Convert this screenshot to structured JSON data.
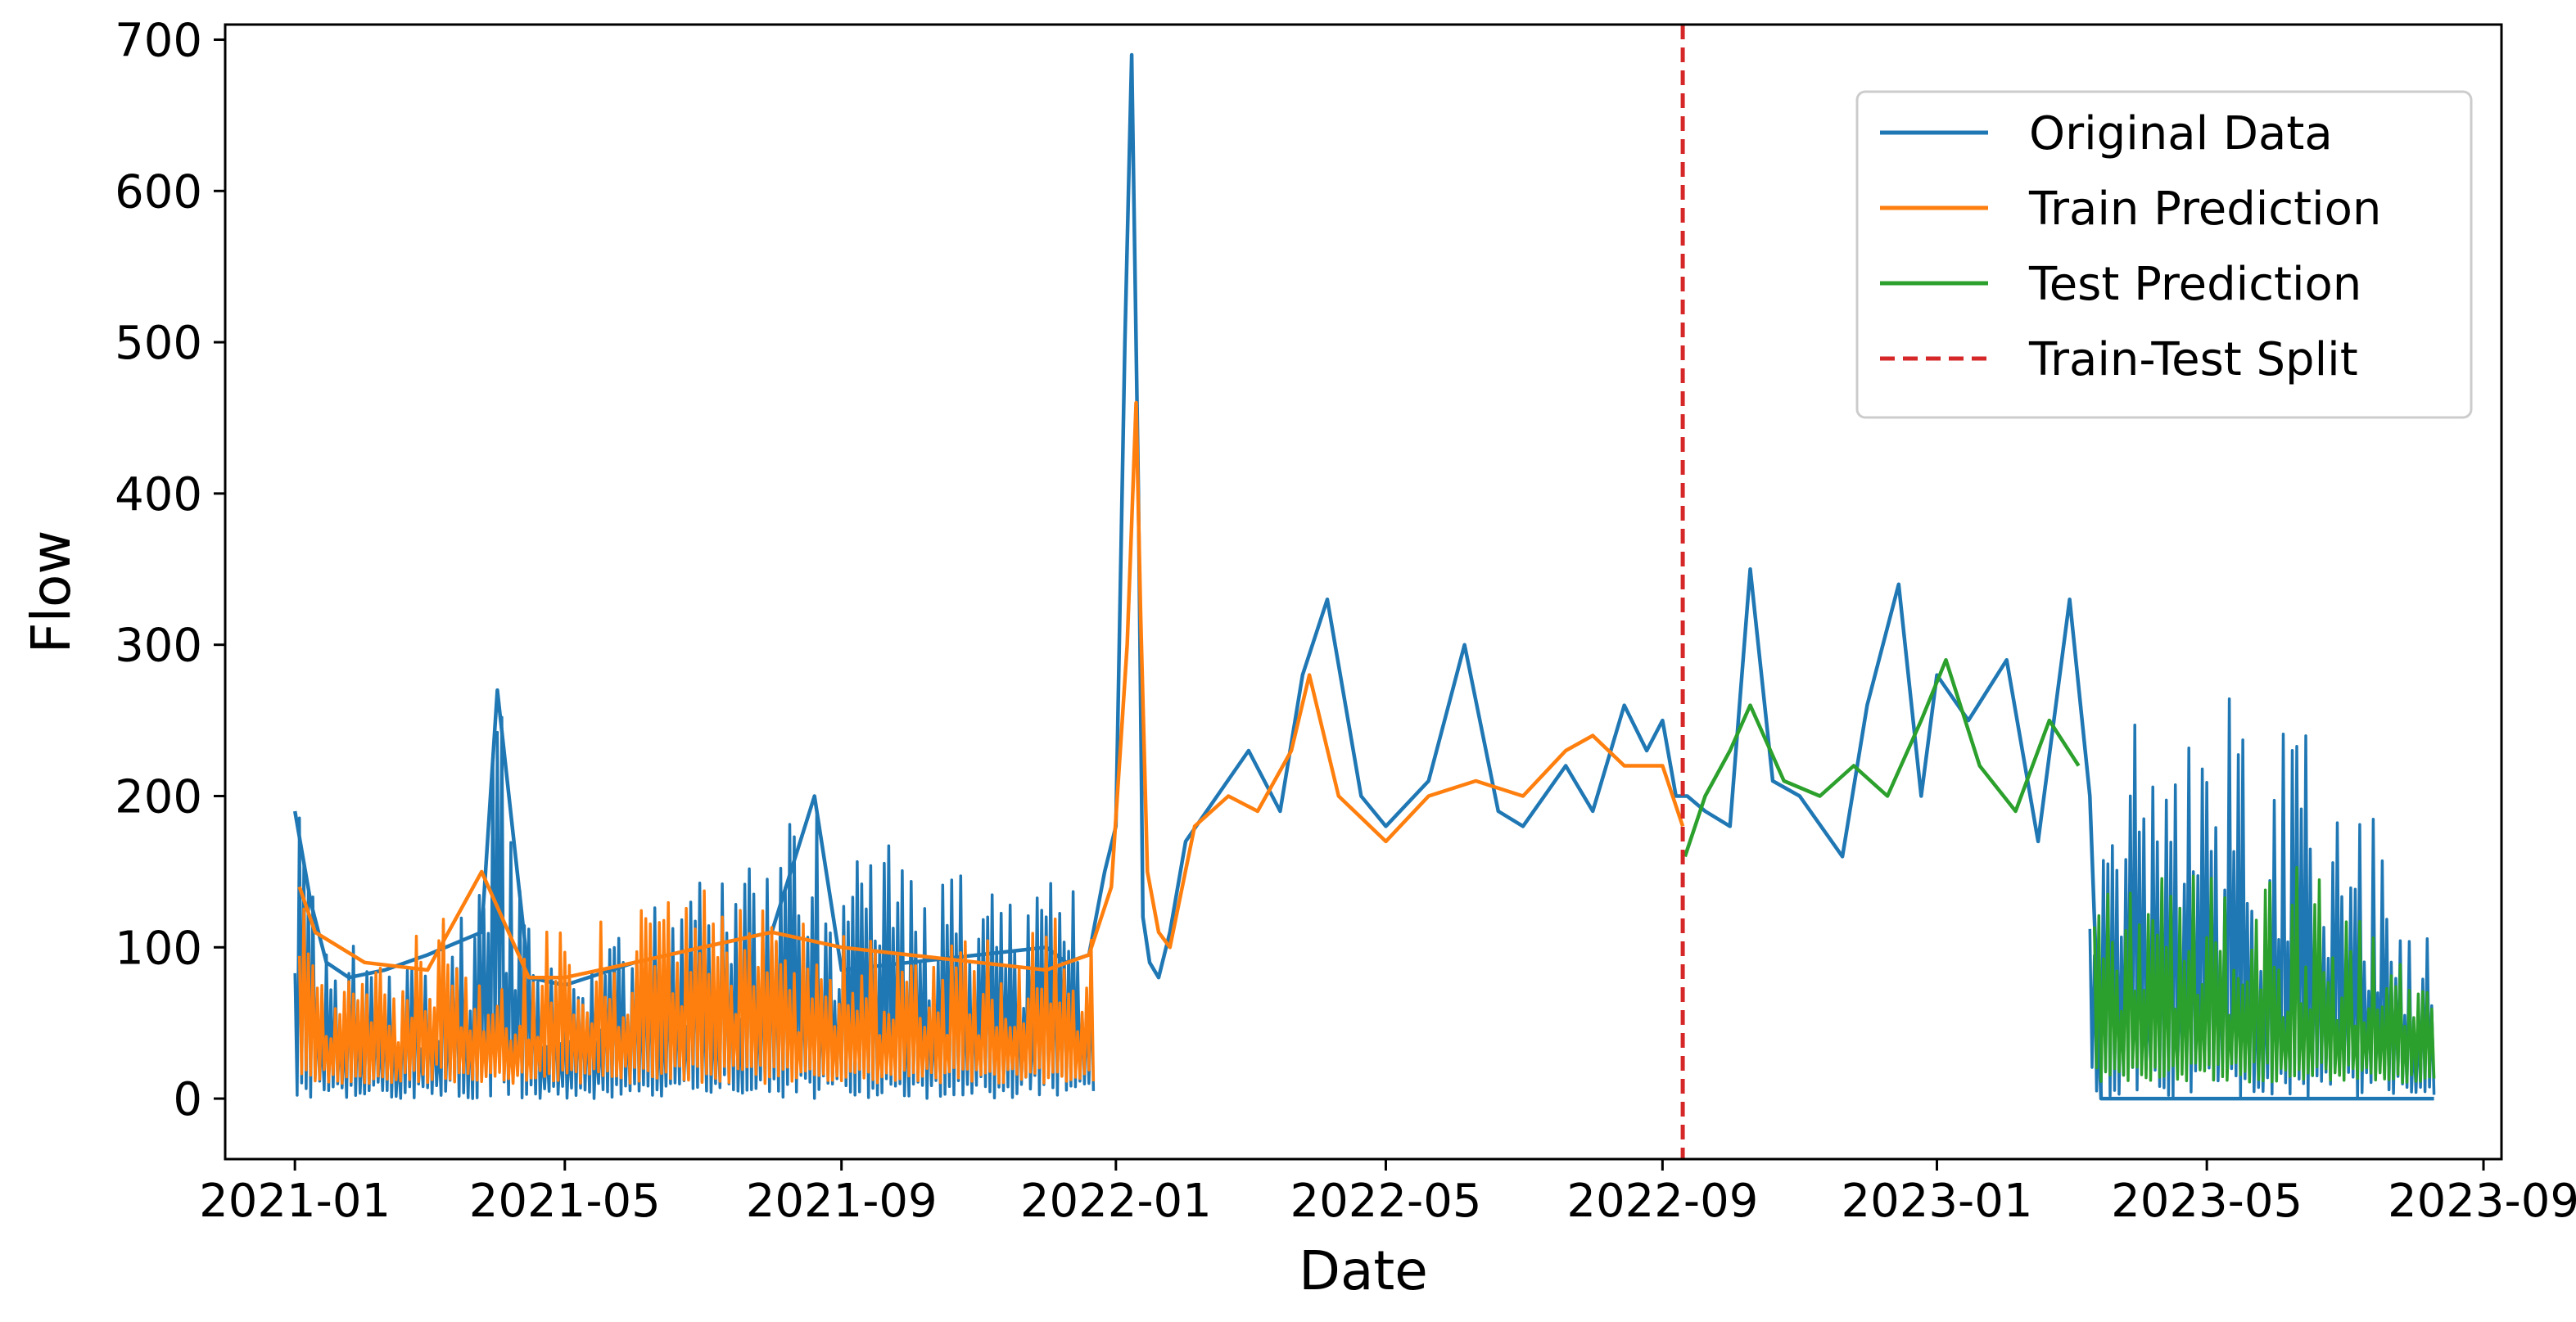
{
  "chart_data": {
    "type": "line",
    "title": "",
    "xlabel": "Date",
    "ylabel": "Flow",
    "xlim": [
      "2020-12-01",
      "2023-09-09"
    ],
    "ylim": [
      -40,
      710
    ],
    "x_ticks": [
      "2021-01",
      "2021-05",
      "2021-09",
      "2022-01",
      "2022-05",
      "2022-09",
      "2023-01",
      "2023-05",
      "2023-09"
    ],
    "y_ticks": [
      0,
      100,
      200,
      300,
      400,
      500,
      600,
      700
    ],
    "grid": false,
    "legend_position": "top-right",
    "series": [
      {
        "name": "Original Data",
        "color": "#1f77b4",
        "style": "solid",
        "x": [
          "2021-01-01",
          "2021-01-08",
          "2021-01-15",
          "2021-01-25",
          "2021-02-10",
          "2021-03-01",
          "2021-03-25",
          "2021-04-01",
          "2021-04-15",
          "2021-05-01",
          "2021-06-01",
          "2021-07-01",
          "2021-08-01",
          "2021-08-20",
          "2021-09-01",
          "2021-10-01",
          "2021-11-01",
          "2021-12-01",
          "2021-12-10",
          "2021-12-20",
          "2021-12-27",
          "2022-01-01",
          "2022-01-05",
          "2022-01-08",
          "2022-01-11",
          "2022-01-13",
          "2022-01-16",
          "2022-01-20",
          "2022-01-25",
          "2022-02-01",
          "2022-02-15",
          "2022-03-01",
          "2022-03-15",
          "2022-03-25",
          "2022-04-05",
          "2022-04-20",
          "2022-05-01",
          "2022-05-20",
          "2022-06-05",
          "2022-06-20",
          "2022-07-01",
          "2022-07-20",
          "2022-08-01",
          "2022-08-15",
          "2022-08-25",
          "2022-09-01",
          "2022-09-07",
          "2022-09-12",
          "2022-09-20",
          "2022-10-01",
          "2022-10-10",
          "2022-10-20",
          "2022-11-01",
          "2022-11-20",
          "2022-12-01",
          "2022-12-15",
          "2022-12-25",
          "2023-01-01",
          "2023-01-15",
          "2023-02-01",
          "2023-02-15",
          "2023-03-01",
          "2023-03-10",
          "2023-03-15",
          "2023-04-01",
          "2023-05-01",
          "2023-06-01",
          "2023-07-01",
          "2023-07-15",
          "2023-08-01",
          "2023-08-10"
        ],
        "y": [
          190,
          130,
          90,
          80,
          85,
          95,
          110,
          270,
          80,
          75,
          90,
          100,
          110,
          200,
          85,
          90,
          95,
          100,
          90,
          95,
          150,
          180,
          500,
          690,
          400,
          120,
          90,
          80,
          110,
          170,
          200,
          230,
          190,
          280,
          330,
          200,
          180,
          210,
          300,
          190,
          180,
          220,
          190,
          260,
          230,
          250,
          200,
          200,
          190,
          180,
          350,
          210,
          200,
          160,
          260,
          340,
          200,
          280,
          250,
          290,
          170,
          330,
          200,
          0,
          0,
          0,
          0,
          0,
          0,
          0,
          0
        ],
        "band": {
          "segments": [
            {
              "start": "2021-01-01",
              "end": "2021-12-22",
              "min": 0,
              "peaks": [
                215,
                90,
                130,
                95,
                110,
                140,
                270,
                90,
                80,
                110,
                120,
                140,
                160,
                170,
                180,
                200,
                160,
                170,
                150,
                160,
                140,
                150,
                160,
                130
              ]
            },
            {
              "start": "2023-03-10",
              "end": "2023-08-10",
              "min": 0,
              "peaks": [
                210,
                230,
                250,
                220,
                270,
                240,
                290,
                230,
                260,
                250,
                240,
                220,
                200,
                180,
                120,
                100
              ]
            }
          ]
        }
      },
      {
        "name": "Train Prediction",
        "color": "#ff7f0e",
        "style": "solid",
        "x": [
          "2021-01-03",
          "2021-01-10",
          "2021-02-01",
          "2021-03-01",
          "2021-03-25",
          "2021-04-15",
          "2021-05-01",
          "2021-06-01",
          "2021-07-01",
          "2021-08-01",
          "2021-09-01",
          "2021-10-01",
          "2021-11-01",
          "2021-12-01",
          "2021-12-20",
          "2021-12-30",
          "2022-01-06",
          "2022-01-10",
          "2022-01-12",
          "2022-01-15",
          "2022-01-20",
          "2022-01-25",
          "2022-02-05",
          "2022-02-20",
          "2022-03-05",
          "2022-03-20",
          "2022-03-28",
          "2022-04-10",
          "2022-05-01",
          "2022-05-20",
          "2022-06-10",
          "2022-07-01",
          "2022-07-20",
          "2022-08-01",
          "2022-08-15",
          "2022-09-01",
          "2022-09-10"
        ],
        "y": [
          140,
          110,
          90,
          85,
          150,
          80,
          80,
          90,
          100,
          110,
          100,
          95,
          90,
          85,
          95,
          140,
          300,
          460,
          320,
          150,
          110,
          100,
          180,
          200,
          190,
          230,
          280,
          200,
          170,
          200,
          210,
          200,
          230,
          240,
          220,
          220,
          180
        ],
        "band": {
          "segments": [
            {
              "start": "2021-01-03",
              "end": "2021-12-22",
              "min": 10,
              "peaks": [
                140,
                95,
                90,
                95,
                150,
                80,
                95,
                110,
                120,
                125,
                130,
                140,
                140,
                145,
                120,
                115,
                110,
                105,
                110,
                115,
                110,
                115,
                120,
                125
              ]
            }
          ]
        }
      },
      {
        "name": "Test Prediction",
        "color": "#2ca02c",
        "style": "solid",
        "x": [
          "2022-09-11",
          "2022-09-20",
          "2022-10-01",
          "2022-10-10",
          "2022-10-25",
          "2022-11-10",
          "2022-11-25",
          "2022-12-10",
          "2022-12-25",
          "2023-01-05",
          "2023-01-20",
          "2023-02-05",
          "2023-02-20",
          "2023-03-05"
        ],
        "y": [
          160,
          200,
          230,
          260,
          210,
          200,
          220,
          200,
          250,
          290,
          220,
          190,
          250,
          220
        ],
        "band": {
          "segments": [
            {
              "start": "2023-03-12",
              "end": "2023-08-10",
              "min": 10,
              "peaks": [
                140,
                145,
                150,
                155,
                160,
                160,
                155,
                160,
                150,
                155,
                150,
                140,
                130,
                110,
                90,
                70
              ]
            }
          ]
        }
      }
    ],
    "vlines": [
      {
        "name": "Train-Test Split",
        "x": "2022-09-10",
        "color": "#d62728",
        "style": "dashed"
      }
    ]
  }
}
